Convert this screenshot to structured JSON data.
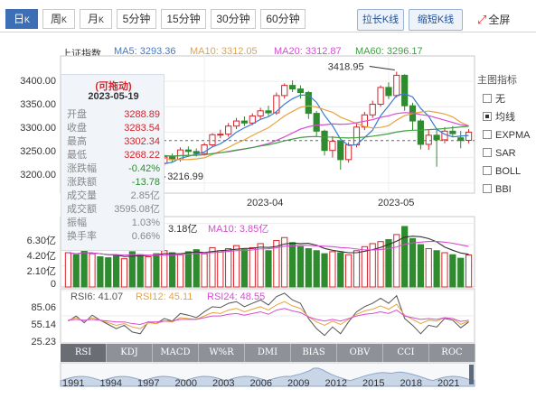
{
  "tabs": {
    "items": [
      {
        "label": "日",
        "sub": "K"
      },
      {
        "label": "周",
        "sub": "K"
      },
      {
        "label": "月",
        "sub": "K"
      },
      {
        "label": "5分钟",
        "sub": ""
      },
      {
        "label": "15分钟",
        "sub": ""
      },
      {
        "label": "30分钟",
        "sub": ""
      },
      {
        "label": "60分钟",
        "sub": ""
      }
    ],
    "active": 0
  },
  "toolbar": {
    "stretch": "拉长K线",
    "shrink": "缩短K线",
    "fullscreen": "全屏"
  },
  "index_name": "上证指数",
  "ma": [
    {
      "label": "MA5: 3293.36",
      "color": "#3a7bd5"
    },
    {
      "label": "MA10: 3312.05",
      "color": "#e8a33d"
    },
    {
      "label": "MA20: 3312.87",
      "color": "#d84bd4"
    },
    {
      "label": "MA60: 3296.17",
      "color": "#3fa142"
    }
  ],
  "side": {
    "title": "主图指标",
    "options": [
      "无",
      "均线",
      "EXPMA",
      "SAR",
      "BOLL",
      "BBI"
    ],
    "selected": 1
  },
  "tooltip": {
    "header": "(可拖动)",
    "date": "2023-05-19",
    "rows": [
      {
        "label": "开盘",
        "value": "3288.89",
        "color": "#d4242b"
      },
      {
        "label": "收盘",
        "value": "3283.54",
        "color": "#d4242b"
      },
      {
        "label": "最高",
        "value": "3302.34",
        "color": "#d4242b"
      },
      {
        "label": "最低",
        "value": "3268.22",
        "color": "#d4242b"
      },
      {
        "label": "涨跌幅",
        "value": "-0.42%",
        "color": "#2e8b2e"
      },
      {
        "label": "涨跌额",
        "value": "-13.78",
        "color": "#2e8b2e"
      },
      {
        "label": "成交量",
        "value": "2.85亿",
        "color": "#888888"
      },
      {
        "label": "成交额",
        "value": "3595.08亿",
        "color": "#888888"
      },
      {
        "label": "振幅",
        "value": "1.03%",
        "color": "#888888"
      },
      {
        "label": "换手率",
        "value": "0.66%",
        "color": "#888888"
      }
    ]
  },
  "volume": {
    "partial_label": "3.18亿",
    "ma10": "MA10: 3.85亿",
    "ticks": [
      "6.30亿",
      "4.20亿",
      "2.10亿",
      "0"
    ]
  },
  "rsi": {
    "labels": [
      {
        "text": "RSI6: 41.07",
        "color": "#555555"
      },
      {
        "text": "RSI12: 45.11",
        "color": "#e8a33d"
      },
      {
        "text": "RSI24: 48.55",
        "color": "#d84bd4"
      }
    ],
    "ticks": [
      "85.06",
      "55.14",
      "25.23"
    ]
  },
  "bottom_tabs": {
    "items": [
      "RSI",
      "KDJ",
      "MACD",
      "W%R",
      "DMI",
      "BIAS",
      "OBV",
      "CCI",
      "ROC"
    ],
    "active": 0
  },
  "years": [
    "1991",
    "1994",
    "1997",
    "2000",
    "2003",
    "2006",
    "2009",
    "2012",
    "2015",
    "2018",
    "2021"
  ],
  "chart_data": [
    {
      "type": "candlestick",
      "series_name": "上证指数",
      "ylim": [
        3180,
        3450
      ],
      "ytick_labels": [
        "3400.00",
        "3350.00",
        "3300.00",
        "3250.00",
        "3200.00"
      ],
      "xtick_labels": [
        "2023-04",
        "2023-05"
      ],
      "annotations": [
        {
          "text": "3418.95",
          "value": 3418.95
        },
        {
          "text": "3216.99",
          "value": 3216.99
        }
      ],
      "candles": [
        [
          3262,
          3276,
          3280,
          3256
        ],
        [
          3276,
          3270,
          3284,
          3262
        ],
        [
          3270,
          3262,
          3278,
          3254
        ],
        [
          3262,
          3275,
          3280,
          3258
        ],
        [
          3275,
          3265,
          3281,
          3259
        ],
        [
          3265,
          3258,
          3272,
          3250
        ],
        [
          3258,
          3247,
          3264,
          3240
        ],
        [
          3247,
          3252,
          3256,
          3238
        ],
        [
          3252,
          3232,
          3256,
          3226
        ],
        [
          3232,
          3226,
          3238,
          3217
        ],
        [
          3226,
          3242,
          3246,
          3222
        ],
        [
          3242,
          3239,
          3248,
          3232
        ],
        [
          3239,
          3251,
          3256,
          3234
        ],
        [
          3251,
          3246,
          3258,
          3240
        ],
        [
          3246,
          3265,
          3270,
          3242
        ],
        [
          3265,
          3262,
          3272,
          3255
        ],
        [
          3262,
          3258,
          3268,
          3252
        ],
        [
          3258,
          3275,
          3279,
          3254
        ],
        [
          3275,
          3295,
          3298,
          3271
        ],
        [
          3295,
          3296,
          3305,
          3288
        ],
        [
          3296,
          3312,
          3318,
          3291
        ],
        [
          3312,
          3322,
          3328,
          3306
        ],
        [
          3322,
          3318,
          3331,
          3312
        ],
        [
          3318,
          3332,
          3337,
          3314
        ],
        [
          3332,
          3342,
          3348,
          3326
        ],
        [
          3342,
          3338,
          3352,
          3332
        ],
        [
          3338,
          3372,
          3378,
          3334
        ],
        [
          3372,
          3392,
          3396,
          3366
        ],
        [
          3392,
          3385,
          3402,
          3379
        ],
        [
          3385,
          3378,
          3392,
          3366
        ],
        [
          3378,
          3337,
          3381,
          3326
        ],
        [
          3337,
          3302,
          3342,
          3292
        ],
        [
          3302,
          3264,
          3305,
          3254
        ],
        [
          3264,
          3282,
          3292,
          3250
        ],
        [
          3282,
          3246,
          3285,
          3226
        ],
        [
          3246,
          3275,
          3280,
          3240
        ],
        [
          3275,
          3310,
          3318,
          3270
        ],
        [
          3310,
          3334,
          3340,
          3304
        ],
        [
          3334,
          3355,
          3362,
          3328
        ],
        [
          3355,
          3388,
          3392,
          3350
        ],
        [
          3388,
          3372,
          3398,
          3365
        ],
        [
          3372,
          3412,
          3419,
          3368
        ],
        [
          3412,
          3352,
          3414,
          3342
        ],
        [
          3352,
          3322,
          3358,
          3304
        ],
        [
          3322,
          3276,
          3326,
          3266
        ],
        [
          3276,
          3294,
          3305,
          3265
        ],
        [
          3294,
          3285,
          3308,
          3232
        ],
        [
          3285,
          3302,
          3310,
          3278
        ],
        [
          3302,
          3297,
          3312,
          3290
        ],
        [
          3288.89,
          3283.54,
          3302.34,
          3268.22
        ],
        [
          3284,
          3300,
          3306,
          3278
        ]
      ]
    },
    {
      "type": "bar",
      "series_name": "成交量(亿)",
      "ylim": [
        0,
        6.8
      ],
      "ytick_labels": [
        "6.30亿",
        "4.20亿",
        "2.10亿",
        "0"
      ],
      "values": [
        3.4,
        3.2,
        3.6,
        3.3,
        3.0,
        2.9,
        3.1,
        2.8,
        3.5,
        3.2,
        3.0,
        3.3,
        3.6,
        3.4,
        3.2,
        3.5,
        3.7,
        3.3,
        3.9,
        3.6,
        3.8,
        4.1,
        3.7,
        3.9,
        4.3,
        3.6,
        4.6,
        4.9,
        4.4,
        4.0,
        3.8,
        3.6,
        3.3,
        3.5,
        3.4,
        3.2,
        3.6,
        4.0,
        4.3,
        4.5,
        4.7,
        5.2,
        6.0,
        4.8,
        4.2,
        3.8,
        3.6,
        3.4,
        3.2,
        2.85,
        3.18
      ]
    },
    {
      "type": "line",
      "series": [
        {
          "name": "RSI6",
          "values": [
            49,
            55,
            47,
            56,
            50,
            45,
            40,
            44,
            36,
            34,
            48,
            46,
            52,
            49,
            58,
            56,
            53,
            60,
            66,
            65,
            70,
            72,
            66,
            70,
            74,
            68,
            78,
            82,
            74,
            70,
            52,
            40,
            32,
            42,
            34,
            48,
            60,
            66,
            70,
            76,
            70,
            79,
            52,
            44,
            34,
            44,
            42,
            52,
            50,
            41.07,
            48
          ]
        },
        {
          "name": "RSI12",
          "values": [
            50,
            53,
            49,
            53,
            50,
            47,
            44,
            46,
            42,
            40,
            47,
            46,
            49,
            48,
            53,
            52,
            51,
            55,
            59,
            58,
            62,
            64,
            60,
            63,
            66,
            62,
            68,
            72,
            67,
            64,
            54,
            48,
            44,
            49,
            45,
            51,
            57,
            61,
            63,
            67,
            63,
            69,
            56,
            51,
            46,
            50,
            49,
            53,
            52,
            45.11,
            49
          ]
        },
        {
          "name": "RSI24",
          "values": [
            50,
            51,
            50,
            51,
            50,
            49,
            48,
            48,
            46,
            45,
            48,
            48,
            49,
            49,
            51,
            51,
            51,
            53,
            55,
            55,
            57,
            58,
            56,
            58,
            60,
            57,
            62,
            64,
            61,
            59,
            54,
            51,
            49,
            51,
            49,
            52,
            55,
            57,
            58,
            60,
            58,
            62,
            55,
            53,
            51,
            52,
            51,
            53,
            52,
            48.55,
            50
          ]
        }
      ],
      "ylim": [
        25.23,
        85.06
      ],
      "ytick_labels": [
        "85.06",
        "55.14",
        "25.23"
      ]
    }
  ]
}
